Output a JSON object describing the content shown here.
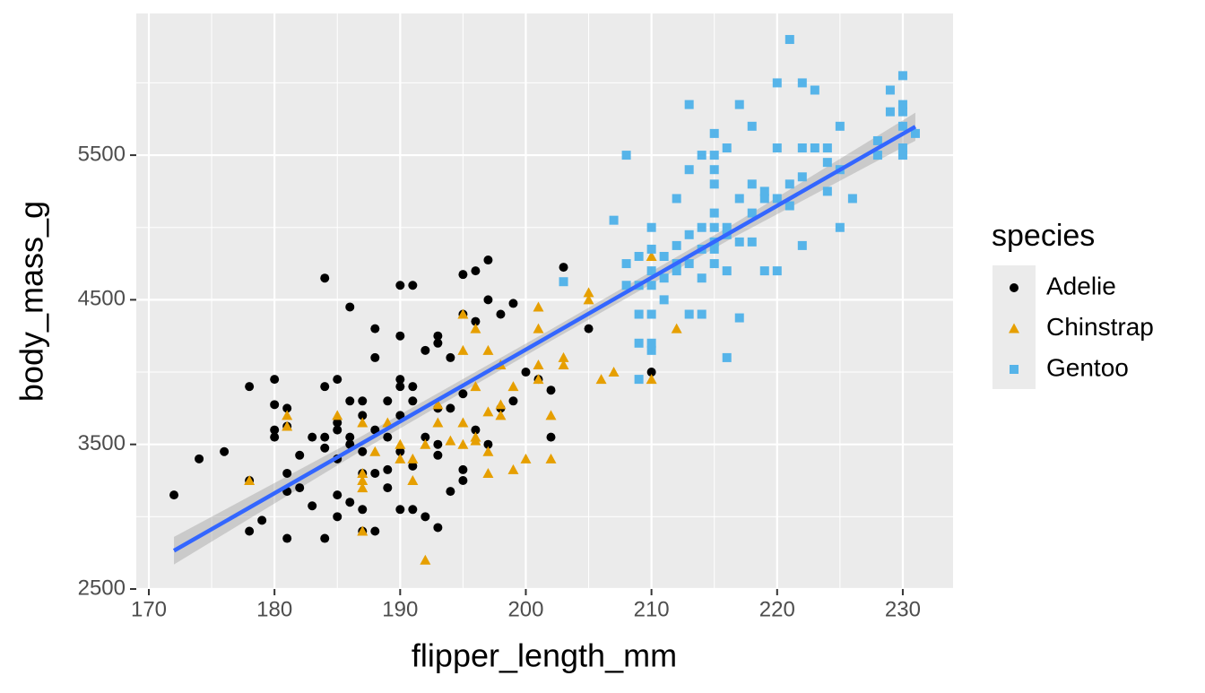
{
  "chart_data": {
    "type": "scatter",
    "x_label": "flipper_length_mm",
    "y_label": "body_mass_g",
    "xlim": [
      169,
      234
    ],
    "ylim": [
      2500,
      6480
    ],
    "xticks": [
      170,
      180,
      190,
      200,
      210,
      220,
      230
    ],
    "yticks": [
      2500,
      3500,
      4500,
      5500
    ],
    "minor_xticks": [
      175,
      185,
      195,
      205,
      215,
      225
    ],
    "minor_yticks": [
      3000,
      4000,
      5000,
      6000
    ],
    "grid": true,
    "legend": "right",
    "legend_title": "species",
    "series": [
      {
        "name": "Adelie",
        "color": "#000000",
        "shape": "circle",
        "x": [
          172,
          174,
          176,
          178,
          178,
          178,
          179,
          180,
          180,
          180,
          180,
          181,
          181,
          181,
          181,
          181,
          182,
          182,
          183,
          183,
          184,
          184,
          184,
          184,
          184,
          185,
          185,
          185,
          185,
          185,
          185,
          186,
          186,
          186,
          186,
          186,
          187,
          187,
          187,
          187,
          187,
          187,
          188,
          188,
          188,
          188,
          188,
          189,
          189,
          189,
          189,
          190,
          190,
          190,
          190,
          190,
          190,
          190,
          191,
          191,
          191,
          191,
          191,
          192,
          192,
          192,
          193,
          193,
          193,
          193,
          193,
          193,
          194,
          194,
          194,
          195,
          195,
          195,
          195,
          195,
          196,
          196,
          196,
          197,
          197,
          197,
          198,
          198,
          199,
          199,
          200,
          201,
          202,
          202,
          203,
          205,
          210
        ],
        "values": [
          3150,
          3400,
          3450,
          3250,
          3900,
          2900,
          2975,
          3950,
          3775,
          3600,
          3550,
          3750,
          3625,
          3300,
          3175,
          2850,
          3200,
          3425,
          3550,
          3075,
          4650,
          3900,
          3550,
          3475,
          2850,
          3950,
          3650,
          3600,
          3400,
          3150,
          3000,
          4450,
          3800,
          3550,
          3500,
          3100,
          3800,
          3700,
          3450,
          3300,
          3050,
          2900,
          4300,
          4100,
          3600,
          3300,
          2900,
          3800,
          3550,
          3325,
          3200,
          4600,
          4250,
          3950,
          3900,
          3700,
          3450,
          3050,
          4600,
          3900,
          3800,
          3350,
          3050,
          4150,
          3550,
          3000,
          4250,
          4200,
          3750,
          3500,
          3425,
          2925,
          4100,
          3750,
          3175,
          4675,
          4400,
          3850,
          3325,
          3250,
          4700,
          4350,
          3600,
          4775,
          4500,
          3500,
          4400,
          3750,
          4475,
          3800,
          4000,
          3950,
          3875,
          3550,
          4725,
          4300,
          4000
        ]
      },
      {
        "name": "Chinstrap",
        "color": "#E69F00",
        "shape": "triangle",
        "x": [
          178,
          181,
          181,
          185,
          187,
          187,
          187,
          187,
          187,
          188,
          189,
          190,
          190,
          191,
          191,
          192,
          192,
          193,
          193,
          194,
          195,
          195,
          195,
          195,
          196,
          196,
          196,
          196,
          197,
          197,
          197,
          197,
          198,
          198,
          198,
          199,
          199,
          200,
          201,
          201,
          201,
          201,
          202,
          202,
          203,
          203,
          205,
          205,
          206,
          207,
          210,
          210,
          212
        ],
        "values": [
          3250,
          3700,
          3625,
          3700,
          3300,
          3250,
          3200,
          2900,
          3650,
          3450,
          3650,
          3400,
          3500,
          3400,
          3250,
          2700,
          3500,
          3650,
          3775,
          3525,
          4400,
          4150,
          3650,
          3500,
          3900,
          3525,
          4300,
          3550,
          4150,
          3725,
          3300,
          3450,
          3700,
          4050,
          3775,
          3325,
          3900,
          3400,
          4450,
          4300,
          4050,
          3950,
          3700,
          3400,
          4100,
          4050,
          4550,
          4500,
          3950,
          4000,
          4800,
          3950,
          4300
        ]
      },
      {
        "name": "Gentoo",
        "color": "#56B4E9",
        "shape": "square",
        "x": [
          203,
          207,
          208,
          208,
          208,
          209,
          209,
          209,
          209,
          209,
          210,
          210,
          210,
          210,
          210,
          210,
          210,
          211,
          211,
          211,
          212,
          212,
          212,
          212,
          213,
          213,
          213,
          213,
          213,
          214,
          214,
          214,
          214,
          214,
          215,
          215,
          215,
          215,
          215,
          215,
          215,
          215,
          215,
          216,
          216,
          216,
          216,
          216,
          217,
          217,
          217,
          217,
          218,
          218,
          218,
          218,
          219,
          219,
          219,
          220,
          220,
          220,
          220,
          221,
          221,
          221,
          222,
          222,
          222,
          222,
          223,
          223,
          224,
          224,
          224,
          225,
          225,
          225,
          226,
          228,
          228,
          229,
          229,
          230,
          230,
          230,
          230,
          230,
          230,
          231
        ],
        "values": [
          4625,
          5050,
          5500,
          4750,
          4600,
          4800,
          4200,
          3950,
          4400,
          4600,
          4700,
          4400,
          4200,
          4150,
          4850,
          5000,
          4600,
          4500,
          4800,
          4650,
          4875,
          4750,
          4700,
          5200,
          5850,
          5400,
          4950,
          4400,
          4750,
          5500,
          4850,
          4400,
          5000,
          4650,
          5650,
          5500,
          5400,
          5100,
          5000,
          4900,
          4850,
          4750,
          5300,
          5550,
          5000,
          4950,
          4700,
          4100,
          5850,
          4375,
          4900,
          5200,
          5700,
          5300,
          5100,
          4900,
          5250,
          5200,
          4700,
          6000,
          5550,
          5200,
          4700,
          6300,
          5300,
          5150,
          6000,
          5550,
          5350,
          4875,
          5950,
          5550,
          5550,
          5450,
          5250,
          5700,
          5400,
          5000,
          5200,
          5600,
          5500,
          5950,
          5800,
          6050,
          5850,
          5800,
          5700,
          5550,
          5500,
          5650
        ]
      }
    ],
    "smooth": {
      "color": "#3366FF",
      "band_color": "#999999",
      "x": [
        172,
        186.8,
        201.9,
        216.5,
        231
      ],
      "values": [
        2765,
        3500,
        4250,
        4976,
        5697
      ],
      "lower": [
        2670,
        3450,
        4210,
        4930,
        5600
      ],
      "upper": [
        2860,
        3550,
        4290,
        5022,
        5794
      ]
    }
  }
}
